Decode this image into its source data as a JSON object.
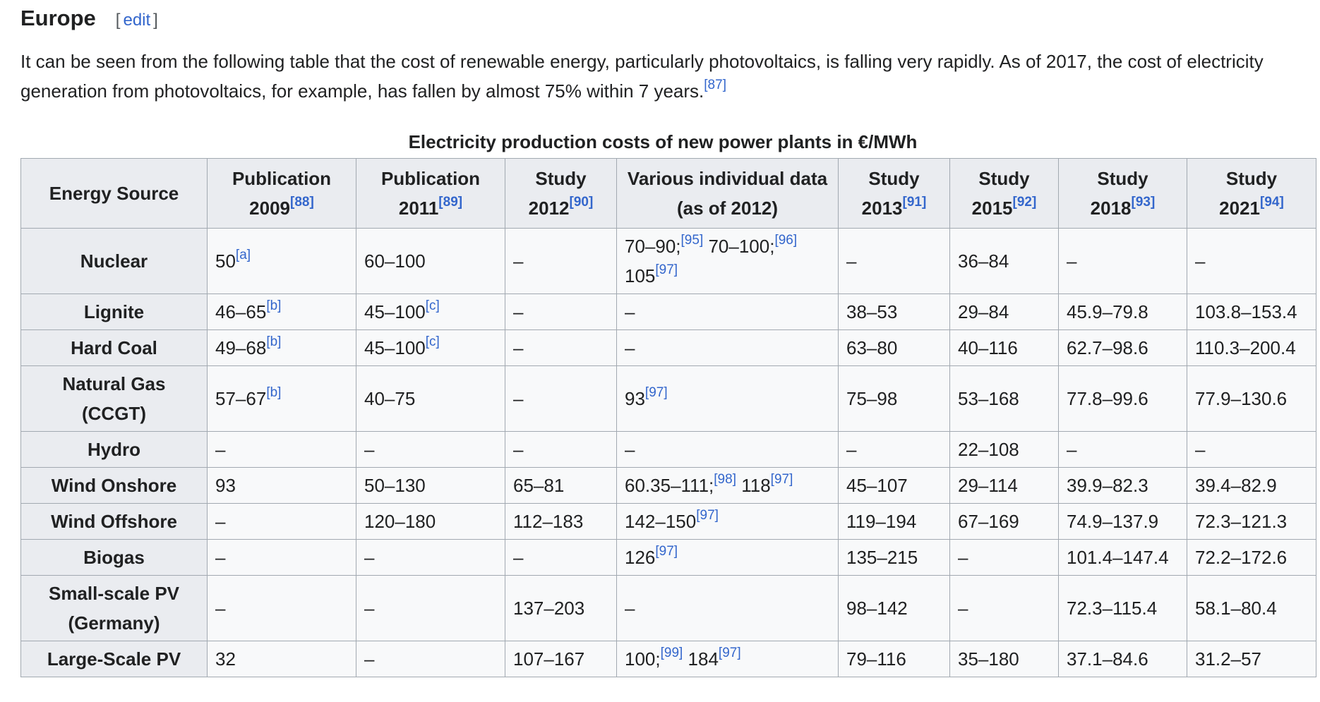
{
  "section": {
    "title": "Europe",
    "edit_label": "edit"
  },
  "intro": {
    "text": "It can be seen from the following table that the cost of renewable energy, particularly photovoltaics, is falling very rapidly. As of 2017, the cost of electricity generation from photovoltaics, for example, has fallen by almost 75% within 7 years.",
    "ref": "[87]"
  },
  "table": {
    "caption": "Electricity production costs of new power plants in €/MWh",
    "headers": [
      {
        "label": "Energy Source",
        "ref": ""
      },
      {
        "label": "Publication 2009",
        "ref": "[88]"
      },
      {
        "label": "Publication 2011",
        "ref": "[89]"
      },
      {
        "label": "Study 2012",
        "ref": "[90]"
      },
      {
        "label": "Various individual data (as of 2012)",
        "ref": ""
      },
      {
        "label": "Study 2013",
        "ref": "[91]"
      },
      {
        "label": "Study 2015",
        "ref": "[92]"
      },
      {
        "label": "Study 2018",
        "ref": "[93]"
      },
      {
        "label": "Study 2021",
        "ref": "[94]"
      }
    ],
    "rows": [
      {
        "source": "Nuclear",
        "cells": [
          [
            {
              "t": "50"
            },
            {
              "r": "[a]"
            }
          ],
          [
            {
              "t": "60–100"
            }
          ],
          [
            {
              "t": "–"
            }
          ],
          [
            {
              "t": "70–90;"
            },
            {
              "r": "[95]"
            },
            {
              "t": " 70–100;"
            },
            {
              "r": "[96]"
            },
            {
              "t": " 105"
            },
            {
              "r": "[97]"
            }
          ],
          [
            {
              "t": "–"
            }
          ],
          [
            {
              "t": "36–84"
            }
          ],
          [
            {
              "t": "–"
            }
          ],
          [
            {
              "t": "–"
            }
          ]
        ]
      },
      {
        "source": "Lignite",
        "cells": [
          [
            {
              "t": "46–65"
            },
            {
              "r": "[b]"
            }
          ],
          [
            {
              "t": "45–100"
            },
            {
              "r": "[c]"
            }
          ],
          [
            {
              "t": "–"
            }
          ],
          [
            {
              "t": "–"
            }
          ],
          [
            {
              "t": "38–53"
            }
          ],
          [
            {
              "t": "29–84"
            }
          ],
          [
            {
              "t": "45.9–79.8"
            }
          ],
          [
            {
              "t": "103.8–153.4"
            }
          ]
        ]
      },
      {
        "source": "Hard Coal",
        "cells": [
          [
            {
              "t": "49–68"
            },
            {
              "r": "[b]"
            }
          ],
          [
            {
              "t": "45–100"
            },
            {
              "r": "[c]"
            }
          ],
          [
            {
              "t": "–"
            }
          ],
          [
            {
              "t": "–"
            }
          ],
          [
            {
              "t": "63–80"
            }
          ],
          [
            {
              "t": "40–116"
            }
          ],
          [
            {
              "t": "62.7–98.6"
            }
          ],
          [
            {
              "t": "110.3–200.4"
            }
          ]
        ]
      },
      {
        "source": "Natural Gas (CCGT)",
        "cells": [
          [
            {
              "t": "57–67"
            },
            {
              "r": "[b]"
            }
          ],
          [
            {
              "t": "40–75"
            }
          ],
          [
            {
              "t": "–"
            }
          ],
          [
            {
              "t": "93"
            },
            {
              "r": "[97]"
            }
          ],
          [
            {
              "t": "75–98"
            }
          ],
          [
            {
              "t": "53–168"
            }
          ],
          [
            {
              "t": "77.8–99.6"
            }
          ],
          [
            {
              "t": "77.9–130.6"
            }
          ]
        ]
      },
      {
        "source": "Hydro",
        "cells": [
          [
            {
              "t": "–"
            }
          ],
          [
            {
              "t": "–"
            }
          ],
          [
            {
              "t": "–"
            }
          ],
          [
            {
              "t": "–"
            }
          ],
          [
            {
              "t": "–"
            }
          ],
          [
            {
              "t": "22–108"
            }
          ],
          [
            {
              "t": "–"
            }
          ],
          [
            {
              "t": "–"
            }
          ]
        ]
      },
      {
        "source": "Wind Onshore",
        "cells": [
          [
            {
              "t": "93"
            }
          ],
          [
            {
              "t": "50–130"
            }
          ],
          [
            {
              "t": "65–81"
            }
          ],
          [
            {
              "t": "60.35–111;"
            },
            {
              "r": "[98]"
            },
            {
              "t": " 118"
            },
            {
              "r": "[97]"
            }
          ],
          [
            {
              "t": "45–107"
            }
          ],
          [
            {
              "t": "29–114"
            }
          ],
          [
            {
              "t": "39.9–82.3"
            }
          ],
          [
            {
              "t": "39.4–82.9"
            }
          ]
        ]
      },
      {
        "source": "Wind Offshore",
        "cells": [
          [
            {
              "t": "–"
            }
          ],
          [
            {
              "t": "120–180"
            }
          ],
          [
            {
              "t": "112–183"
            }
          ],
          [
            {
              "t": "142–150"
            },
            {
              "r": "[97]"
            }
          ],
          [
            {
              "t": "119–194"
            }
          ],
          [
            {
              "t": "67–169"
            }
          ],
          [
            {
              "t": "74.9–137.9"
            }
          ],
          [
            {
              "t": "72.3–121.3"
            }
          ]
        ]
      },
      {
        "source": "Biogas",
        "cells": [
          [
            {
              "t": "–"
            }
          ],
          [
            {
              "t": "–"
            }
          ],
          [
            {
              "t": "–"
            }
          ],
          [
            {
              "t": "126"
            },
            {
              "r": "[97]"
            }
          ],
          [
            {
              "t": "135–215"
            }
          ],
          [
            {
              "t": "–"
            }
          ],
          [
            {
              "t": "101.4–147.4"
            }
          ],
          [
            {
              "t": "72.2–172.6"
            }
          ]
        ]
      },
      {
        "source": "Small-scale PV (Germany)",
        "cells": [
          [
            {
              "t": "–"
            }
          ],
          [
            {
              "t": "–"
            }
          ],
          [
            {
              "t": "137–203"
            }
          ],
          [
            {
              "t": "–"
            }
          ],
          [
            {
              "t": "98–142"
            }
          ],
          [
            {
              "t": "–"
            }
          ],
          [
            {
              "t": "72.3–115.4"
            }
          ],
          [
            {
              "t": "58.1–80.4"
            }
          ]
        ]
      },
      {
        "source": "Large-Scale PV",
        "cells": [
          [
            {
              "t": "32"
            }
          ],
          [
            {
              "t": "–"
            }
          ],
          [
            {
              "t": "107–167"
            }
          ],
          [
            {
              "t": "100;"
            },
            {
              "r": "[99]"
            },
            {
              "t": " 184"
            },
            {
              "r": "[97]"
            }
          ],
          [
            {
              "t": "79–116"
            }
          ],
          [
            {
              "t": "35–180"
            }
          ],
          [
            {
              "t": "37.1–84.6"
            }
          ],
          [
            {
              "t": "31.2–57"
            }
          ]
        ]
      }
    ]
  }
}
